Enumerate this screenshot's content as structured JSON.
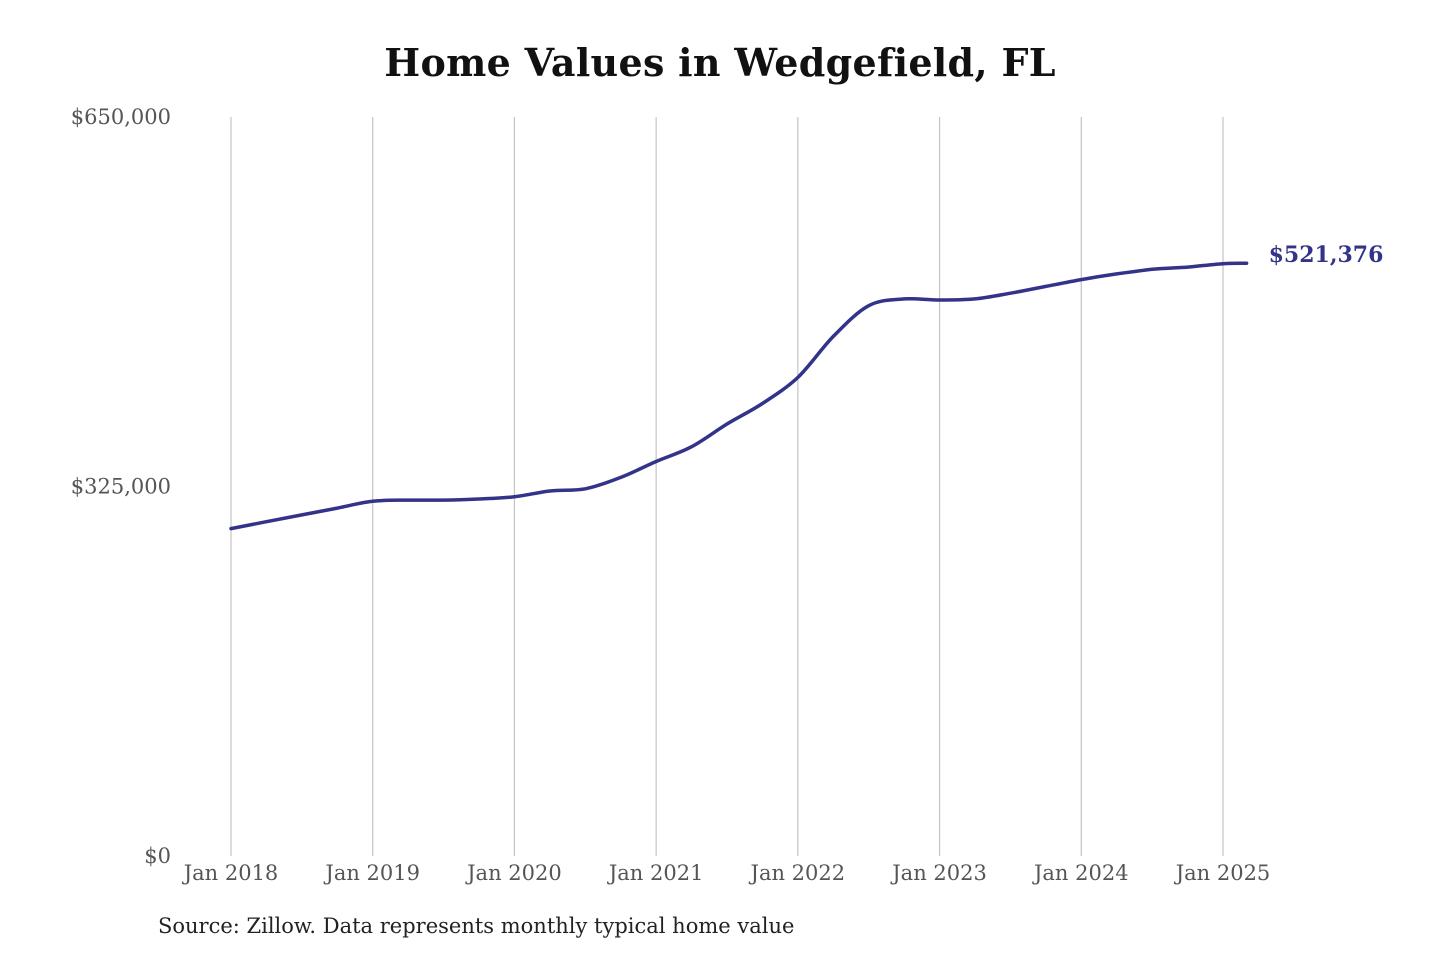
{
  "chart_data": {
    "type": "line",
    "title": "Home Values in Wedgefield, FL",
    "xlabel": "",
    "ylabel": "",
    "x_range": [
      "2018-01",
      "2025-03"
    ],
    "ylim": [
      0,
      650000
    ],
    "y_ticks": [
      {
        "value": 0,
        "label": "$0"
      },
      {
        "value": 325000,
        "label": "$325,000"
      },
      {
        "value": 650000,
        "label": "$650,000"
      }
    ],
    "x_ticks": [
      {
        "date": "2018-01",
        "label": "Jan 2018"
      },
      {
        "date": "2019-01",
        "label": "Jan 2019"
      },
      {
        "date": "2020-01",
        "label": "Jan 2020"
      },
      {
        "date": "2021-01",
        "label": "Jan 2021"
      },
      {
        "date": "2022-01",
        "label": "Jan 2022"
      },
      {
        "date": "2023-01",
        "label": "Jan 2023"
      },
      {
        "date": "2024-01",
        "label": "Jan 2024"
      },
      {
        "date": "2025-01",
        "label": "Jan 2025"
      }
    ],
    "grid": "vertical",
    "line_color": "#33338a",
    "series": [
      {
        "points": [
          {
            "date": "2018-01",
            "value": 288000
          },
          {
            "date": "2018-04",
            "value": 294000
          },
          {
            "date": "2018-07",
            "value": 300000
          },
          {
            "date": "2018-10",
            "value": 306000
          },
          {
            "date": "2019-01",
            "value": 312000
          },
          {
            "date": "2019-04",
            "value": 313000
          },
          {
            "date": "2019-07",
            "value": 313000
          },
          {
            "date": "2019-10",
            "value": 314000
          },
          {
            "date": "2020-01",
            "value": 316000
          },
          {
            "date": "2020-04",
            "value": 321000
          },
          {
            "date": "2020-07",
            "value": 323000
          },
          {
            "date": "2020-10",
            "value": 333000
          },
          {
            "date": "2021-01",
            "value": 347000
          },
          {
            "date": "2021-04",
            "value": 360000
          },
          {
            "date": "2021-07",
            "value": 380000
          },
          {
            "date": "2021-10",
            "value": 398000
          },
          {
            "date": "2022-01",
            "value": 421000
          },
          {
            "date": "2022-04",
            "value": 457000
          },
          {
            "date": "2022-07",
            "value": 484000
          },
          {
            "date": "2022-10",
            "value": 490000
          },
          {
            "date": "2023-01",
            "value": 489000
          },
          {
            "date": "2023-04",
            "value": 490000
          },
          {
            "date": "2023-07",
            "value": 495000
          },
          {
            "date": "2023-10",
            "value": 501000
          },
          {
            "date": "2024-01",
            "value": 507000
          },
          {
            "date": "2024-04",
            "value": 512000
          },
          {
            "date": "2024-07",
            "value": 516000
          },
          {
            "date": "2024-10",
            "value": 518000
          },
          {
            "date": "2025-01",
            "value": 521000
          },
          {
            "date": "2025-03",
            "value": 521376
          }
        ]
      }
    ],
    "end_label": "$521,376"
  },
  "source": "Source: Zillow. Data represents monthly typical home value"
}
